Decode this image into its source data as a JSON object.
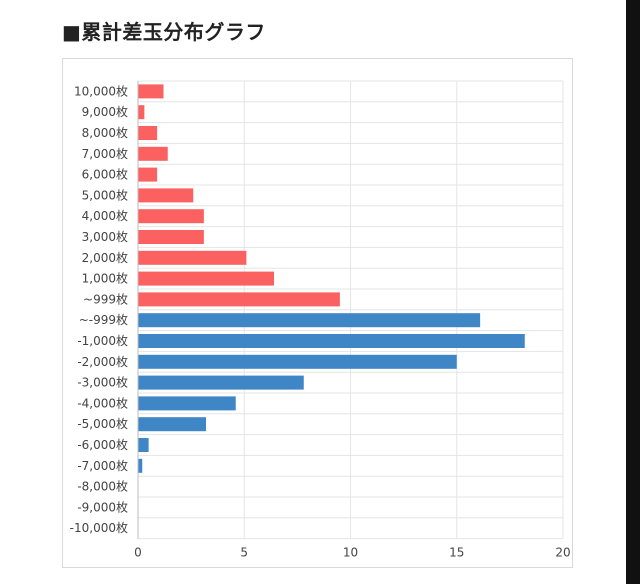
{
  "page": {
    "title": "■累計差玉分布グラフ"
  },
  "chart_data": {
    "type": "bar",
    "orientation": "horizontal",
    "categories": [
      "10,000枚",
      "9,000枚",
      "8,000枚",
      "7,000枚",
      "6,000枚",
      "5,000枚",
      "4,000枚",
      "3,000枚",
      "2,000枚",
      "1,000枚",
      "~999枚",
      "~-999枚",
      "-1,000枚",
      "-2,000枚",
      "-3,000枚",
      "-4,000枚",
      "-5,000枚",
      "-6,000枚",
      "-7,000枚",
      "-8,000枚",
      "-9,000枚",
      "-10,000枚"
    ],
    "values": [
      1.2,
      0.3,
      0.9,
      1.4,
      0.9,
      2.6,
      3.1,
      3.1,
      5.1,
      6.4,
      9.5,
      16.1,
      18.2,
      15.0,
      7.8,
      4.6,
      3.2,
      0.5,
      0.2,
      0,
      0,
      0
    ],
    "bar_colors": [
      "#fb6161",
      "#fb6161",
      "#fb6161",
      "#fb6161",
      "#fb6161",
      "#fb6161",
      "#fb6161",
      "#fb6161",
      "#fb6161",
      "#fb6161",
      "#fb6161",
      "#3f86c7",
      "#3f86c7",
      "#3f86c7",
      "#3f86c7",
      "#3f86c7",
      "#3f86c7",
      "#3f86c7",
      "#3f86c7",
      "#3f86c7",
      "#3f86c7",
      "#3f86c7"
    ],
    "xlim": [
      0,
      20
    ],
    "xticks": [
      0,
      5,
      10,
      15,
      20
    ],
    "xtick_labels": [
      "0",
      "5",
      "10",
      "15",
      "20"
    ],
    "grid": true,
    "legend": "none"
  },
  "colors": {
    "positive": "#fb6161",
    "negative": "#3f86c7",
    "grid": "#e5e5e5",
    "border": "#d9d9d9"
  }
}
